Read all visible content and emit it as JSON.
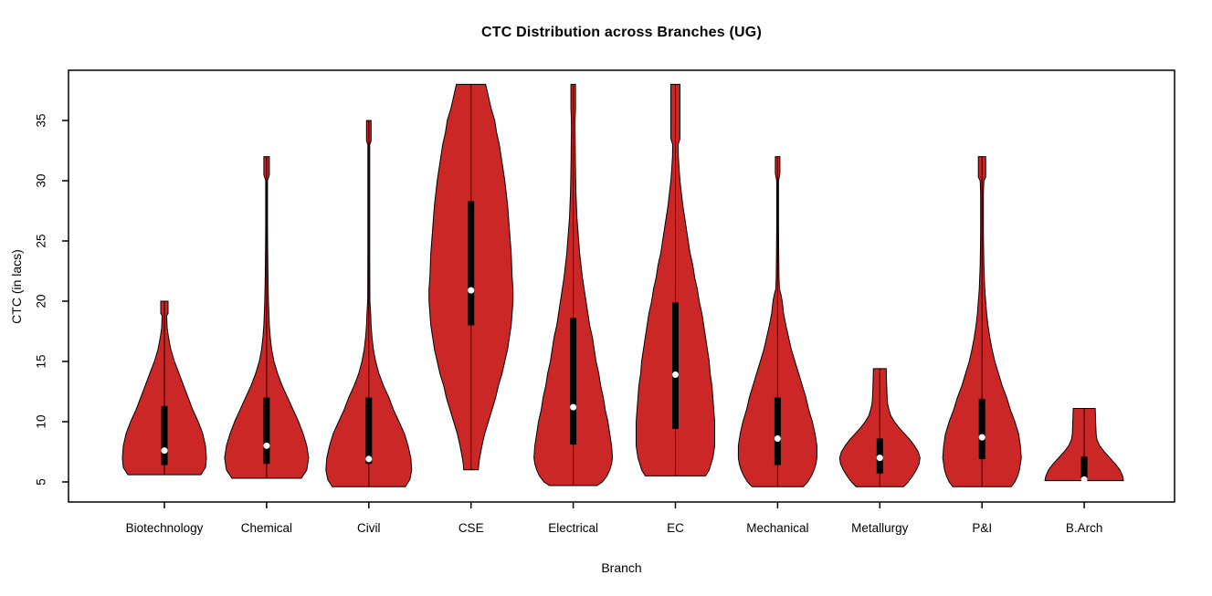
{
  "chart_data": {
    "type": "violin",
    "title": "CTC Distribution across Branches (UG)",
    "xlabel": "Branch",
    "ylabel": "CTC (in lacs)",
    "y_ticks": [
      5,
      10,
      15,
      20,
      25,
      30,
      35
    ],
    "ylim": [
      3.3,
      39.3
    ],
    "grid": "off",
    "categories": [
      "Biotechnology",
      "Chemical",
      "Civil",
      "CSE",
      "Electrical",
      "EC",
      "Mechanical",
      "Metallurgy",
      "P&I",
      "B.Arch"
    ],
    "colors": {
      "violin_fill": "#CC2727",
      "violin_stroke": "#000000",
      "box_fill": "#000000",
      "median_dot": "#FFFFFF",
      "axis": "#000000",
      "background": "#FFFFFF"
    },
    "series": [
      {
        "branch": "Biotechnology",
        "min": 5.6,
        "max": 20,
        "q1": 6.4,
        "q3": 11.3,
        "median": 7.6,
        "profile": [
          [
            5.6,
            40
          ],
          [
            6.2,
            45
          ],
          [
            7,
            46
          ],
          [
            8,
            45
          ],
          [
            9,
            42
          ],
          [
            10,
            37
          ],
          [
            11,
            31
          ],
          [
            12,
            26
          ],
          [
            13,
            21
          ],
          [
            14,
            16
          ],
          [
            15,
            11
          ],
          [
            16,
            7
          ],
          [
            17,
            4.5
          ],
          [
            17.8,
            3
          ],
          [
            18.8,
            2.5
          ],
          [
            19,
            4
          ],
          [
            20,
            4
          ]
        ]
      },
      {
        "branch": "Chemical",
        "min": 5.3,
        "max": 32,
        "q1": 6.5,
        "q3": 12,
        "median": 8,
        "profile": [
          [
            5.3,
            38
          ],
          [
            6,
            44
          ],
          [
            7,
            46
          ],
          [
            8,
            44
          ],
          [
            9,
            40
          ],
          [
            10,
            35
          ],
          [
            11,
            29
          ],
          [
            12,
            23
          ],
          [
            13,
            17
          ],
          [
            14,
            12
          ],
          [
            15,
            8
          ],
          [
            16,
            5.5
          ],
          [
            17,
            4
          ],
          [
            18,
            3
          ],
          [
            19,
            2.5
          ],
          [
            20,
            2
          ],
          [
            22,
            1.5
          ],
          [
            24,
            1.2
          ],
          [
            26,
            1
          ],
          [
            28,
            1
          ],
          [
            30,
            1
          ],
          [
            30.5,
            3
          ],
          [
            32,
            3
          ]
        ]
      },
      {
        "branch": "Civil",
        "min": 4.6,
        "max": 35,
        "q1": 6.5,
        "q3": 12,
        "median": 6.9,
        "profile": [
          [
            4.6,
            40
          ],
          [
            5.2,
            45
          ],
          [
            6,
            47
          ],
          [
            7,
            46
          ],
          [
            8,
            43
          ],
          [
            9,
            39
          ],
          [
            10,
            33
          ],
          [
            11,
            27
          ],
          [
            12,
            22
          ],
          [
            13,
            16
          ],
          [
            14,
            11
          ],
          [
            15,
            7.5
          ],
          [
            16,
            5
          ],
          [
            17,
            3.5
          ],
          [
            18,
            2.5
          ],
          [
            19,
            2
          ],
          [
            20,
            1.2
          ],
          [
            24,
            1
          ],
          [
            28,
            1
          ],
          [
            32,
            1
          ],
          [
            33,
            1
          ],
          [
            33.3,
            2.5
          ],
          [
            35,
            2.5
          ]
        ]
      },
      {
        "branch": "CSE",
        "min": 6,
        "max": 38,
        "q1": 18,
        "q3": 28.3,
        "median": 20.9,
        "profile": [
          [
            6,
            8
          ],
          [
            6.5,
            8.5
          ],
          [
            7,
            9.5
          ],
          [
            8,
            12
          ],
          [
            9,
            15
          ],
          [
            10,
            19
          ],
          [
            11,
            23
          ],
          [
            12,
            27
          ],
          [
            13,
            30
          ],
          [
            14,
            34
          ],
          [
            15,
            37
          ],
          [
            16,
            40
          ],
          [
            17,
            42
          ],
          [
            18,
            44
          ],
          [
            19,
            45
          ],
          [
            20,
            46
          ],
          [
            21,
            46
          ],
          [
            22,
            45
          ],
          [
            23,
            44.5
          ],
          [
            24,
            44
          ],
          [
            25,
            43
          ],
          [
            26,
            42
          ],
          [
            27,
            41
          ],
          [
            28,
            40
          ],
          [
            29,
            38.5
          ],
          [
            30,
            37
          ],
          [
            31,
            35
          ],
          [
            32,
            33
          ],
          [
            33,
            31
          ],
          [
            34,
            28
          ],
          [
            35,
            26
          ],
          [
            36,
            22
          ],
          [
            37,
            19
          ],
          [
            38,
            16
          ]
        ]
      },
      {
        "branch": "Electrical",
        "min": 4.7,
        "max": 38,
        "q1": 8.1,
        "q3": 18.6,
        "median": 11.2,
        "profile": [
          [
            4.7,
            26
          ],
          [
            5,
            32
          ],
          [
            5.5,
            37
          ],
          [
            6,
            40
          ],
          [
            6.5,
            42
          ],
          [
            7,
            43
          ],
          [
            8,
            42
          ],
          [
            9,
            40
          ],
          [
            10,
            38
          ],
          [
            11,
            35
          ],
          [
            12,
            33
          ],
          [
            13,
            30
          ],
          [
            14,
            28
          ],
          [
            15,
            25
          ],
          [
            16,
            23
          ],
          [
            17,
            21
          ],
          [
            18,
            18
          ],
          [
            19,
            16
          ],
          [
            20,
            14
          ],
          [
            21,
            12
          ],
          [
            22,
            10
          ],
          [
            23,
            8.5
          ],
          [
            24,
            7
          ],
          [
            25,
            6
          ],
          [
            26,
            5
          ],
          [
            27,
            4
          ],
          [
            28,
            3.5
          ],
          [
            29,
            3
          ],
          [
            30,
            2.7
          ],
          [
            31,
            2.5
          ],
          [
            32,
            2.3
          ],
          [
            33,
            2.2
          ],
          [
            34,
            2
          ],
          [
            35,
            2
          ],
          [
            36,
            2.5
          ],
          [
            38,
            2.5
          ]
        ]
      },
      {
        "branch": "EC",
        "min": 5.5,
        "max": 38,
        "q1": 9.4,
        "q3": 19.9,
        "median": 13.9,
        "profile": [
          [
            5.5,
            33
          ],
          [
            6,
            37
          ],
          [
            7,
            41
          ],
          [
            8,
            43
          ],
          [
            9,
            43
          ],
          [
            10,
            43
          ],
          [
            11,
            42
          ],
          [
            12,
            41
          ],
          [
            13,
            40
          ],
          [
            14,
            38
          ],
          [
            15,
            37
          ],
          [
            16,
            35
          ],
          [
            17,
            33
          ],
          [
            18,
            31
          ],
          [
            19,
            29
          ],
          [
            20,
            26
          ],
          [
            21,
            24
          ],
          [
            22,
            21
          ],
          [
            23,
            19
          ],
          [
            24,
            16
          ],
          [
            25,
            14
          ],
          [
            26,
            12
          ],
          [
            27,
            10
          ],
          [
            28,
            8
          ],
          [
            29,
            6.5
          ],
          [
            30,
            5
          ],
          [
            31,
            4
          ],
          [
            32,
            3.2
          ],
          [
            33,
            3
          ],
          [
            33.5,
            5
          ],
          [
            38,
            5
          ]
        ]
      },
      {
        "branch": "Mechanical",
        "min": 4.6,
        "max": 32,
        "q1": 6.4,
        "q3": 12,
        "median": 8.6,
        "profile": [
          [
            4.6,
            28
          ],
          [
            5,
            33
          ],
          [
            5.5,
            37
          ],
          [
            6,
            40
          ],
          [
            6.5,
            42
          ],
          [
            7,
            43
          ],
          [
            8,
            43
          ],
          [
            9,
            41
          ],
          [
            10,
            38
          ],
          [
            11,
            34
          ],
          [
            12,
            31
          ],
          [
            13,
            27
          ],
          [
            14,
            23
          ],
          [
            15,
            19
          ],
          [
            16,
            15
          ],
          [
            17,
            12
          ],
          [
            18,
            9
          ],
          [
            19,
            6.5
          ],
          [
            20,
            5
          ],
          [
            20.6,
            3.5
          ],
          [
            21,
            2
          ],
          [
            22,
            1.5
          ],
          [
            24,
            1.2
          ],
          [
            26,
            1
          ],
          [
            28,
            1
          ],
          [
            30,
            1
          ],
          [
            30.6,
            2.5
          ],
          [
            32,
            2.5
          ]
        ]
      },
      {
        "branch": "Metallurgy",
        "min": 4.6,
        "max": 14.4,
        "q1": 5.7,
        "q3": 8.6,
        "median": 7,
        "profile": [
          [
            4.6,
            26
          ],
          [
            5,
            31
          ],
          [
            5.5,
            36
          ],
          [
            6,
            40
          ],
          [
            6.5,
            43
          ],
          [
            7,
            44
          ],
          [
            7.5,
            42
          ],
          [
            8,
            38
          ],
          [
            8.5,
            33
          ],
          [
            9,
            27
          ],
          [
            9.5,
            21
          ],
          [
            10,
            16
          ],
          [
            10.5,
            12
          ],
          [
            11,
            10
          ],
          [
            11.5,
            8.5
          ],
          [
            12,
            8
          ],
          [
            13,
            7.5
          ],
          [
            14.4,
            7
          ]
        ]
      },
      {
        "branch": "P&I",
        "min": 4.6,
        "max": 32,
        "q1": 6.9,
        "q3": 11.9,
        "median": 8.7,
        "profile": [
          [
            4.6,
            32
          ],
          [
            5,
            36
          ],
          [
            5.5,
            39
          ],
          [
            6,
            41
          ],
          [
            6.5,
            42
          ],
          [
            7,
            43
          ],
          [
            8,
            42
          ],
          [
            9,
            40
          ],
          [
            10,
            36
          ],
          [
            11,
            31
          ],
          [
            12,
            27
          ],
          [
            13,
            22
          ],
          [
            14,
            18
          ],
          [
            15,
            14
          ],
          [
            16,
            11
          ],
          [
            17,
            8.5
          ],
          [
            18,
            6.5
          ],
          [
            19,
            5
          ],
          [
            20,
            4
          ],
          [
            21,
            3
          ],
          [
            22,
            2.5
          ],
          [
            23,
            2
          ],
          [
            24,
            1.8
          ],
          [
            25,
            1.6
          ],
          [
            26,
            1.5
          ],
          [
            28,
            1.5
          ],
          [
            29,
            1.5
          ],
          [
            30,
            2
          ],
          [
            30.3,
            4
          ],
          [
            32,
            4
          ]
        ]
      },
      {
        "branch": "B.Arch",
        "min": 5,
        "max": 11.1,
        "q1": 5.1,
        "q3": 7.1,
        "median": 5.2,
        "profile": [
          [
            5.1,
            43
          ],
          [
            5.5,
            42
          ],
          [
            6,
            39
          ],
          [
            6.5,
            34
          ],
          [
            7,
            28
          ],
          [
            7.5,
            22
          ],
          [
            8,
            17
          ],
          [
            8.5,
            14
          ],
          [
            9,
            13
          ],
          [
            10,
            12.5
          ],
          [
            11.1,
            12
          ]
        ]
      }
    ]
  }
}
